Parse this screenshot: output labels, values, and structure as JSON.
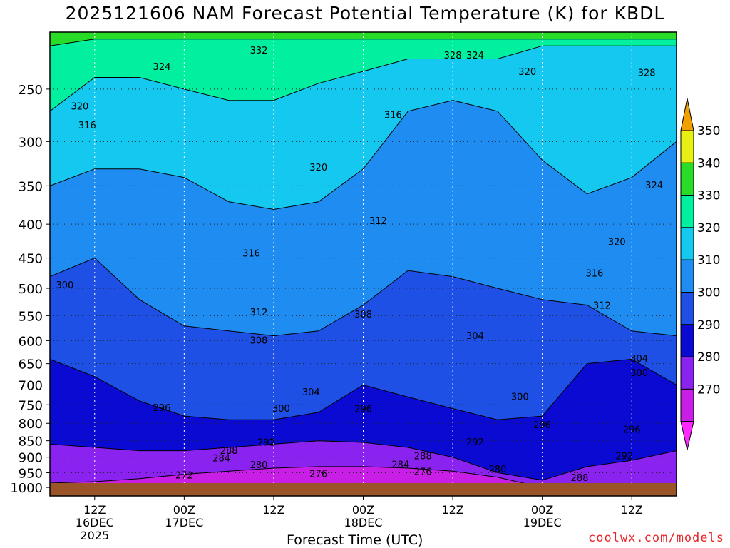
{
  "title": "2025121606 NAM Forecast Potential Temperature (K) for KBDL",
  "credit": "coolwx.com/models",
  "chart_data": {
    "type": "contour",
    "title": "2025121606 NAM Forecast Potential Temperature (K) for KBDL",
    "xlabel": "Forecast Time (UTC)",
    "ylabel": "",
    "y_scale": "log",
    "y_reversed": true,
    "ylim": [
      1030,
      205
    ],
    "xlim_hours": [
      6,
      90
    ],
    "grid": true,
    "y_ticks": [
      250,
      300,
      350,
      400,
      450,
      500,
      550,
      600,
      650,
      700,
      750,
      800,
      850,
      900,
      950,
      1000
    ],
    "x_ticks": [
      {
        "hour": 12,
        "lines": [
          "12Z",
          "16DEC",
          "2025"
        ]
      },
      {
        "hour": 24,
        "lines": [
          "00Z",
          "17DEC"
        ]
      },
      {
        "hour": 36,
        "lines": [
          "12Z"
        ]
      },
      {
        "hour": 48,
        "lines": [
          "00Z",
          "18DEC"
        ]
      },
      {
        "hour": 60,
        "lines": [
          "12Z"
        ]
      },
      {
        "hour": 72,
        "lines": [
          "00Z",
          "19DEC"
        ]
      },
      {
        "hour": 84,
        "lines": [
          "12Z"
        ]
      }
    ],
    "colorbar": {
      "levels": [
        270,
        280,
        290,
        300,
        310,
        320,
        330,
        340,
        350
      ],
      "colors": [
        "#ff28ff",
        "#c81ee6",
        "#8a22f0",
        "#0a0ad2",
        "#1e50e6",
        "#1e8cf0",
        "#14c8f0",
        "#00f0a0",
        "#28dc28",
        "#e6f014",
        "#f0a000"
      ]
    },
    "x": [
      6,
      12,
      18,
      24,
      30,
      36,
      42,
      48,
      54,
      60,
      66,
      72,
      78,
      84,
      90
    ],
    "series": [
      {
        "name": "270",
        "values": [
          1003,
          1003,
          1003,
          1003,
          1003,
          1003,
          1003,
          1003,
          1003,
          1003,
          1003,
          1003,
          1003,
          1003,
          1003
        ]
      },
      {
        "name": "280",
        "values": [
          985,
          980,
          970,
          955,
          945,
          935,
          930,
          930,
          935,
          945,
          965,
          1000,
          1003,
          1003,
          1003
        ]
      },
      {
        "name": "290",
        "values": [
          860,
          870,
          880,
          880,
          870,
          860,
          850,
          855,
          870,
          900,
          950,
          975,
          930,
          910,
          880
        ]
      },
      {
        "name": "300",
        "values": [
          640,
          680,
          740,
          780,
          790,
          790,
          770,
          700,
          730,
          760,
          790,
          780,
          650,
          640,
          700
        ]
      },
      {
        "name": "310",
        "values": [
          480,
          450,
          520,
          570,
          580,
          590,
          580,
          530,
          470,
          480,
          500,
          520,
          530,
          580,
          590
        ]
      },
      {
        "name": "320",
        "values": [
          350,
          330,
          330,
          340,
          370,
          380,
          370,
          330,
          270,
          260,
          270,
          320,
          360,
          340,
          300
        ]
      },
      {
        "name": "330",
        "values": [
          270,
          240,
          240,
          250,
          260,
          260,
          245,
          235,
          225,
          225,
          225,
          215,
          215,
          215,
          215
        ]
      },
      {
        "name": "340",
        "values": [
          215,
          210,
          210,
          210,
          210,
          210,
          210,
          210,
          210,
          210,
          210,
          210,
          210,
          210,
          210
        ]
      }
    ],
    "contour_labels": [
      {
        "text": "332",
        "hour": 34,
        "p": 218
      },
      {
        "text": "328",
        "hour": 60,
        "p": 222
      },
      {
        "text": "324",
        "hour": 63,
        "p": 222
      },
      {
        "text": "324",
        "hour": 21,
        "p": 231
      },
      {
        "text": "320",
        "hour": 70,
        "p": 235
      },
      {
        "text": "328",
        "hour": 86,
        "p": 236
      },
      {
        "text": "320",
        "hour": 10,
        "p": 265
      },
      {
        "text": "316",
        "hour": 11,
        "p": 283
      },
      {
        "text": "316",
        "hour": 52,
        "p": 273
      },
      {
        "text": "320",
        "hour": 42,
        "p": 328
      },
      {
        "text": "324",
        "hour": 87,
        "p": 349
      },
      {
        "text": "312",
        "hour": 50,
        "p": 395
      },
      {
        "text": "320",
        "hour": 82,
        "p": 425
      },
      {
        "text": "316",
        "hour": 33,
        "p": 442
      },
      {
        "text": "316",
        "hour": 79,
        "p": 474
      },
      {
        "text": "300",
        "hour": 8,
        "p": 494
      },
      {
        "text": "312",
        "hour": 80,
        "p": 530
      },
      {
        "text": "312",
        "hour": 34,
        "p": 543
      },
      {
        "text": "308",
        "hour": 48,
        "p": 547
      },
      {
        "text": "304",
        "hour": 63,
        "p": 589
      },
      {
        "text": "308",
        "hour": 34,
        "p": 599
      },
      {
        "text": "304",
        "hour": 85,
        "p": 638
      },
      {
        "text": "300",
        "hour": 85,
        "p": 670
      },
      {
        "text": "304",
        "hour": 41,
        "p": 717
      },
      {
        "text": "300",
        "hour": 69,
        "p": 728
      },
      {
        "text": "296",
        "hour": 21,
        "p": 757
      },
      {
        "text": "300",
        "hour": 37,
        "p": 759
      },
      {
        "text": "296",
        "hour": 48,
        "p": 760
      },
      {
        "text": "296",
        "hour": 72,
        "p": 803
      },
      {
        "text": "296",
        "hour": 84,
        "p": 817
      },
      {
        "text": "292",
        "hour": 63,
        "p": 853
      },
      {
        "text": "292",
        "hour": 35,
        "p": 854
      },
      {
        "text": "288",
        "hour": 30,
        "p": 879
      },
      {
        "text": "288",
        "hour": 56,
        "p": 895
      },
      {
        "text": "284",
        "hour": 29,
        "p": 902
      },
      {
        "text": "292",
        "hour": 83,
        "p": 895
      },
      {
        "text": "284",
        "hour": 53,
        "p": 922
      },
      {
        "text": "280",
        "hour": 34,
        "p": 923
      },
      {
        "text": "280",
        "hour": 66,
        "p": 937
      },
      {
        "text": "276",
        "hour": 56,
        "p": 945
      },
      {
        "text": "276",
        "hour": 42,
        "p": 952
      },
      {
        "text": "272",
        "hour": 24,
        "p": 957
      },
      {
        "text": "288",
        "hour": 77,
        "p": 965
      }
    ]
  }
}
